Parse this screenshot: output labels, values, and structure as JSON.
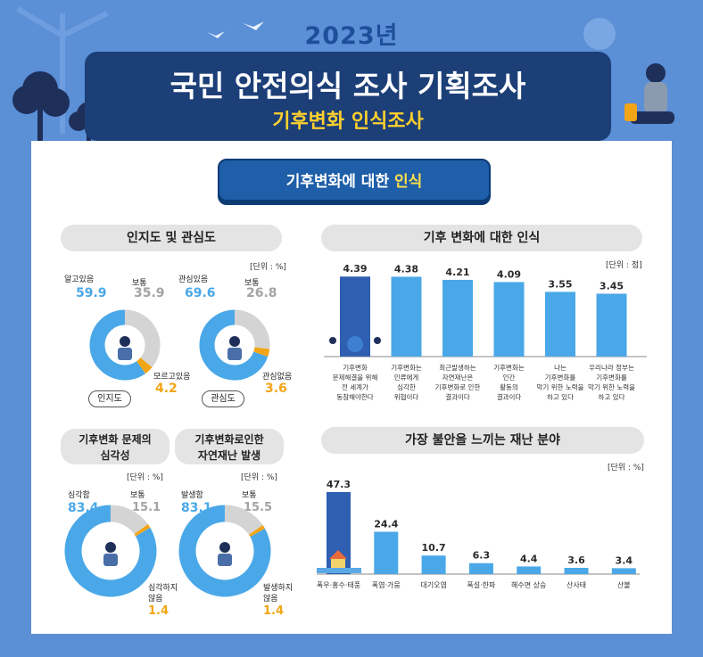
{
  "header": {
    "year": "2023년",
    "title": "국민 안전의식 조사 기획조사",
    "subtitle": "기후변화 인식조사"
  },
  "section": {
    "title_main": "기후변화에 대한 ",
    "title_highlight": "인식"
  },
  "colors": {
    "background": "#5b8fd6",
    "banner": "#1c3f78",
    "accent_blue": "#4aa8e8",
    "dark_blue": "#2e5fb0",
    "orange": "#f2a516",
    "gray": "#d4d4d4",
    "yellow": "#ffd02d"
  },
  "awareness": {
    "heading": "인지도 및 관심도",
    "unit": "[단위 : %]",
    "donuts": [
      {
        "tag": "인지도",
        "labels": [
          "알고있음",
          "보통",
          "모르고있음"
        ],
        "value_texts": [
          "59.9",
          "35.9",
          "4.2"
        ]
      },
      {
        "tag": "관심도",
        "labels": [
          "관심있음",
          "보통",
          "관심없음"
        ],
        "value_texts": [
          "69.6",
          "26.8",
          "3.6"
        ]
      }
    ]
  },
  "seriousness": {
    "heading_lines": [
      "기후변화 문제의",
      "심각성"
    ],
    "unit": "[단위 : %]",
    "labels": [
      "심각함",
      "보통",
      "심각하지",
      "않음"
    ],
    "value_texts": [
      "83.4",
      "15.1",
      "1.4"
    ]
  },
  "occurrence": {
    "heading_lines": [
      "기후변화로인한",
      "자연재난 발생"
    ],
    "unit": "[단위 : %]",
    "labels": [
      "발생함",
      "보통",
      "발생하지",
      "않음"
    ],
    "value_texts": [
      "83.1",
      "15.5",
      "1.4"
    ]
  },
  "perception": {
    "heading": "기후 변화에 대한 인식",
    "unit": "[단위 : 점]"
  },
  "disaster": {
    "heading": "가장 불안을 느끼는 재난 분야",
    "unit": "[단위 : %]"
  },
  "chart_data": [
    {
      "type": "pie",
      "categories": [
        "알고있음",
        "보통",
        "모르고있음"
      ],
      "values": [
        59.9,
        35.9,
        4.2
      ],
      "unit": "%"
    },
    {
      "type": "pie",
      "categories": [
        "관심있음",
        "보통",
        "관심없음"
      ],
      "values": [
        69.6,
        26.8,
        3.6
      ],
      "unit": "%"
    },
    {
      "type": "pie",
      "categories": [
        "심각함",
        "보통",
        "심각하지 않음"
      ],
      "values": [
        83.4,
        15.1,
        1.4
      ],
      "unit": "%"
    },
    {
      "type": "pie",
      "categories": [
        "발생함",
        "보통",
        "발생하지 않음"
      ],
      "values": [
        83.1,
        15.5,
        1.4
      ],
      "unit": "%"
    },
    {
      "type": "bar",
      "title": "기후 변화에 대한 인식",
      "unit": "점",
      "categories": [
        [
          "기후변화",
          "문제해결을 위해",
          "전 세계가",
          "동참해야한다"
        ],
        [
          "기후변화는",
          "인류에게",
          "심각한",
          "위협이다"
        ],
        [
          "최근발생하는",
          "자연재난은",
          "기후변화로 인한",
          "결과이다"
        ],
        [
          "기후변화는",
          "인간",
          "활동의",
          "결과이다"
        ],
        [
          "나는",
          "기후변화를",
          "막기 위한 노력을",
          "하고 있다"
        ],
        [
          "우리나라 정부는",
          "기후변화를",
          "막기 위한 노력을",
          "하고 있다"
        ]
      ],
      "values": [
        4.39,
        4.38,
        4.21,
        4.09,
        3.55,
        3.45
      ],
      "value_labels": [
        "4.39",
        "4.38",
        "4.21",
        "4.09",
        "3.55",
        "3.45"
      ]
    },
    {
      "type": "bar",
      "title": "가장 불안을 느끼는 재난 분야",
      "unit": "%",
      "categories": [
        "폭우·홍수·태풍",
        "폭염·가뭄",
        "대기오염",
        "폭설·한파",
        "해수면 상승",
        "산사태",
        "산불"
      ],
      "values": [
        47.3,
        24.4,
        10.7,
        6.3,
        4.4,
        3.6,
        3.4
      ],
      "value_labels": [
        "47.3",
        "24.4",
        "10.7",
        "6.3",
        "4.4",
        "3.6",
        "3.4"
      ]
    }
  ]
}
